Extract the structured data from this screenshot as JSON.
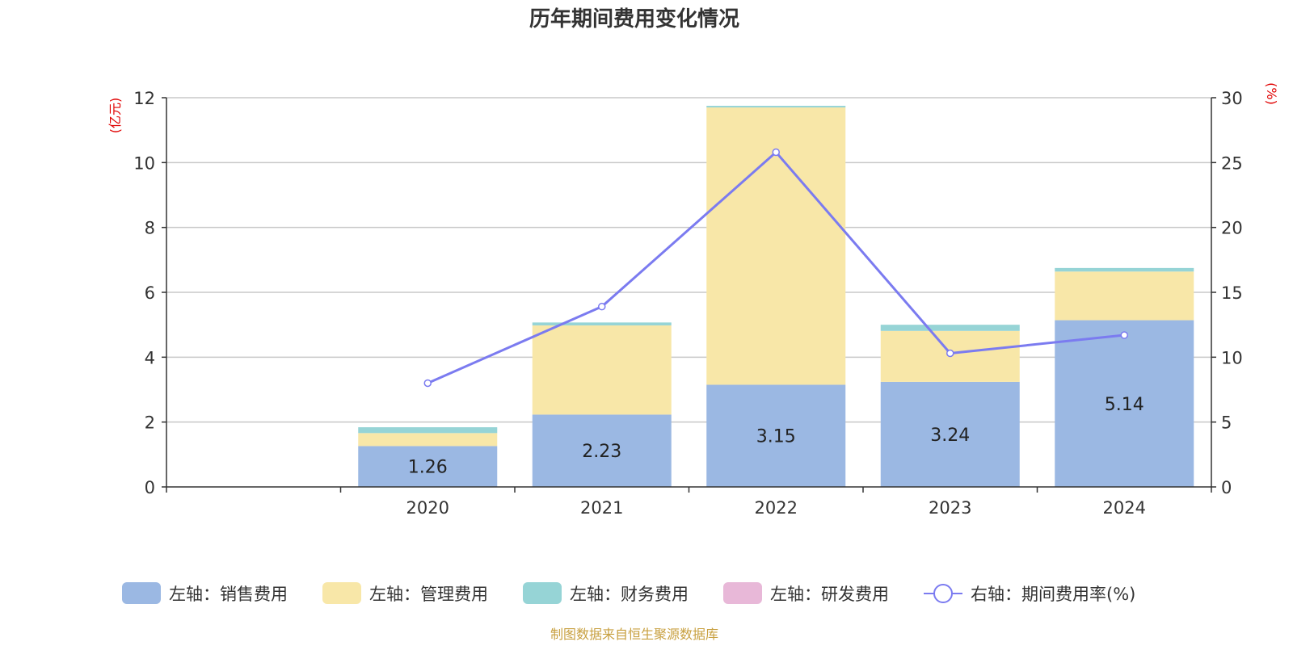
{
  "chart_data": {
    "type": "bar",
    "title": "历年期间费用变化情况",
    "source": "制图数据来自恒生聚源数据库",
    "categories": [
      "",
      "2020",
      "2021",
      "2022",
      "2023",
      "2024"
    ],
    "left_axis": {
      "unit": "(亿元)",
      "ylim": [
        0,
        12
      ],
      "ticks": [
        "0",
        "2",
        "4",
        "6",
        "8",
        "10",
        "12"
      ]
    },
    "right_axis": {
      "unit": "(%)",
      "ylim": [
        0,
        30
      ],
      "ticks": [
        "0",
        "5",
        "10",
        "15",
        "20",
        "25",
        "30"
      ]
    },
    "grid": true,
    "legend_position": "bottom",
    "series": [
      {
        "name": "左轴：销售费用",
        "axis": "left",
        "type": "bar",
        "color": "#9bb8e3",
        "values": [
          null,
          1.26,
          2.23,
          3.15,
          3.24,
          5.14
        ],
        "labels": [
          "",
          "1.26",
          "2.23",
          "3.15",
          "3.24",
          "5.14"
        ]
      },
      {
        "name": "左轴：管理费用",
        "axis": "left",
        "type": "bar",
        "color": "#f8e7a8",
        "values": [
          null,
          0.4,
          2.75,
          8.55,
          1.57,
          1.5
        ]
      },
      {
        "name": "左轴：财务费用",
        "axis": "left",
        "type": "bar",
        "color": "#96d4d6",
        "values": [
          null,
          0.18,
          0.09,
          0.05,
          0.19,
          0.11
        ]
      },
      {
        "name": "左轴：研发费用",
        "axis": "left",
        "type": "bar",
        "color": "#e8b8d8",
        "values": [
          null,
          0,
          0,
          0,
          0,
          0
        ]
      },
      {
        "name": "右轴：期间费用率(%)",
        "axis": "right",
        "type": "line",
        "color": "#7b7bf0",
        "values": [
          null,
          8.0,
          13.9,
          25.8,
          10.3,
          11.7
        ]
      }
    ]
  }
}
